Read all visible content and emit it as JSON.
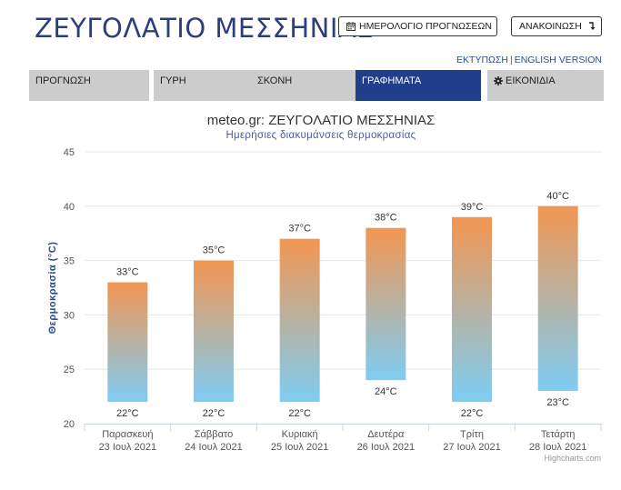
{
  "site": {
    "title": "ΖΕΥΓΟΛΑΤΙΟ ΜΕΣΣΗΝΙΑΣ"
  },
  "header": {
    "calendar_button": "ΗΜΕΡΟΛΟΓΙΟ ΠΡΟΓΝΩΣΕΩΝ",
    "calendar_icon": "calendar-icon",
    "announce_button": "ΑΝΑΚΟΙΝΩΣΗ",
    "announce_icon": "arrow-down-icon",
    "print_link": "ΕΚΤΥΠΩΣΗ",
    "separator": "|",
    "english_link": "ENGLISH VERSION"
  },
  "tabs": [
    {
      "label": "ΠΡΟΓΝΩΣΗ",
      "active": false
    },
    {
      "label": "ΓΥΡΗ",
      "active": false
    },
    {
      "label": "ΣΚΟΝΗ",
      "active": false
    },
    {
      "label": "ΓΡΑΦΗΜΑΤΑ",
      "active": true
    },
    {
      "label": "ΕΙΚΟΝΙΔΙΑ",
      "active": false,
      "icon": "gear-icon"
    }
  ],
  "colors": {
    "accent": "#203e8a",
    "title": "#2b3f7a",
    "bar_top": "#f39651",
    "bar_bottom": "#7ecdf4",
    "grid": "#e6e6e6"
  },
  "chart_data": {
    "type": "columnrange",
    "title": "meteo.gr: ΖΕΥΓΟΛΑΤΙΟ ΜΕΣΣΗΝΙΑΣ",
    "subtitle": "Ημερήσιες διακυμάνσεις θερμοκρασίας",
    "ylabel": "Θερμοκρασία (°C)",
    "xlabel": "",
    "ylim": [
      20,
      45
    ],
    "yticks": [
      20,
      25,
      30,
      35,
      40,
      45
    ],
    "grid": true,
    "unit": "°C",
    "categories": [
      [
        "Παρασκευή",
        "23 Ιουλ 2021"
      ],
      [
        "Σάββατο",
        "24 Ιουλ 2021"
      ],
      [
        "Κυριακή",
        "25 Ιουλ 2021"
      ],
      [
        "Δευτέρα",
        "26 Ιουλ 2021"
      ],
      [
        "Τρίτη",
        "27 Ιουλ 2021"
      ],
      [
        "Τετάρτη",
        "28 Ιουλ 2021"
      ]
    ],
    "series": [
      {
        "low": [
          22,
          22,
          22,
          24,
          22,
          23
        ],
        "high": [
          33,
          35,
          37,
          38,
          39,
          40
        ]
      }
    ],
    "credits": "Highcharts.com"
  }
}
